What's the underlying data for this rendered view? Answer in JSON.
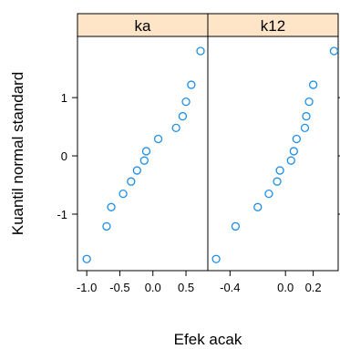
{
  "chart_data": {
    "type": "scatter",
    "xlabel": "Efek acak",
    "ylabel": "Kuantil normal standard",
    "ylim": [
      -1.97,
      2.05
    ],
    "yticks": [
      -1,
      0,
      1
    ],
    "ytick_labels": [
      "-1",
      "0",
      "1"
    ],
    "marker_color": "#1f8fe6",
    "strip_color": "#ffe5c7",
    "panels": [
      {
        "name": "ka",
        "xlim": [
          -1.14,
          0.83
        ],
        "xticks": [
          -1.0,
          -0.5,
          0.0,
          0.5
        ],
        "xtick_labels": [
          "-1.0",
          "-0.5",
          "0.0",
          "0.5"
        ],
        "points": [
          {
            "x": -1.0,
            "y": -1.77
          },
          {
            "x": -0.7,
            "y": -1.21
          },
          {
            "x": -0.63,
            "y": -0.88
          },
          {
            "x": -0.45,
            "y": -0.65
          },
          {
            "x": -0.33,
            "y": -0.44
          },
          {
            "x": -0.24,
            "y": -0.25
          },
          {
            "x": -0.13,
            "y": -0.08
          },
          {
            "x": -0.1,
            "y": 0.08
          },
          {
            "x": 0.08,
            "y": 0.29
          },
          {
            "x": 0.35,
            "y": 0.48
          },
          {
            "x": 0.45,
            "y": 0.68
          },
          {
            "x": 0.5,
            "y": 0.93
          },
          {
            "x": 0.58,
            "y": 1.22
          },
          {
            "x": 0.72,
            "y": 1.8
          }
        ]
      },
      {
        "name": "k12",
        "xlim": [
          -0.56,
          0.38
        ],
        "xticks": [
          -0.4,
          0.0,
          0.2
        ],
        "xtick_labels": [
          "-0.4",
          "0.0",
          "0.2"
        ],
        "points": [
          {
            "x": -0.5,
            "y": -1.77
          },
          {
            "x": -0.36,
            "y": -1.21
          },
          {
            "x": -0.2,
            "y": -0.88
          },
          {
            "x": -0.12,
            "y": -0.65
          },
          {
            "x": -0.06,
            "y": -0.44
          },
          {
            "x": -0.04,
            "y": -0.25
          },
          {
            "x": 0.04,
            "y": -0.08
          },
          {
            "x": 0.06,
            "y": 0.08
          },
          {
            "x": 0.08,
            "y": 0.29
          },
          {
            "x": 0.14,
            "y": 0.48
          },
          {
            "x": 0.15,
            "y": 0.68
          },
          {
            "x": 0.17,
            "y": 0.93
          },
          {
            "x": 0.2,
            "y": 1.22
          },
          {
            "x": 0.35,
            "y": 1.8
          }
        ]
      }
    ]
  }
}
